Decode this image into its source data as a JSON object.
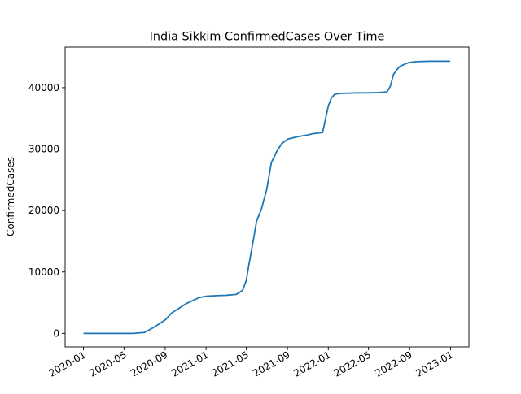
{
  "chart_data": {
    "type": "line",
    "title": "India Sikkim ConfirmedCases Over Time",
    "xlabel": "",
    "ylabel": "ConfirmedCases",
    "grid": false,
    "x_domain": [
      "2020-01-01",
      "2023-01-01"
    ],
    "ylim": [
      -2200,
      46600
    ],
    "x_ticks": [
      "2020-01",
      "2020-05",
      "2020-09",
      "2021-01",
      "2021-05",
      "2021-09",
      "2022-01",
      "2022-05",
      "2022-09",
      "2023-01"
    ],
    "y_ticks": [
      0,
      10000,
      20000,
      30000,
      40000
    ],
    "series": [
      {
        "color": "#1f77b4",
        "x": [
          "2020-01-01",
          "2020-03-01",
          "2020-05-01",
          "2020-06-01",
          "2020-07-01",
          "2020-07-20",
          "2020-08-10",
          "2020-09-01",
          "2020-09-20",
          "2020-10-10",
          "2020-11-01",
          "2020-11-20",
          "2020-12-10",
          "2021-01-01",
          "2021-02-01",
          "2021-03-01",
          "2021-04-01",
          "2021-04-20",
          "2021-05-01",
          "2021-05-10",
          "2021-05-20",
          "2021-06-01",
          "2021-06-15",
          "2021-07-01",
          "2021-07-15",
          "2021-08-01",
          "2021-08-15",
          "2021-09-01",
          "2021-09-15",
          "2021-10-01",
          "2021-10-15",
          "2021-11-01",
          "2021-11-15",
          "2021-12-01",
          "2021-12-15",
          "2022-01-01",
          "2022-01-10",
          "2022-01-20",
          "2022-02-01",
          "2022-03-01",
          "2022-04-01",
          "2022-05-01",
          "2022-06-01",
          "2022-06-25",
          "2022-07-05",
          "2022-07-15",
          "2022-08-01",
          "2022-08-20",
          "2022-09-01",
          "2022-09-15",
          "2022-10-01",
          "2022-11-01",
          "2022-12-01",
          "2022-12-31"
        ],
        "y": [
          0,
          0,
          0,
          10,
          150,
          700,
          1400,
          2200,
          3300,
          4000,
          4800,
          5300,
          5800,
          6050,
          6150,
          6200,
          6350,
          7000,
          8600,
          11500,
          14500,
          18300,
          20200,
          23400,
          27800,
          29700,
          30900,
          31600,
          31800,
          32000,
          32150,
          32300,
          32500,
          32600,
          32700,
          37000,
          38300,
          38900,
          39050,
          39100,
          39150,
          39150,
          39200,
          39300,
          40200,
          42200,
          43400,
          43900,
          44100,
          44200,
          44250,
          44300,
          44300,
          44300
        ]
      }
    ]
  }
}
